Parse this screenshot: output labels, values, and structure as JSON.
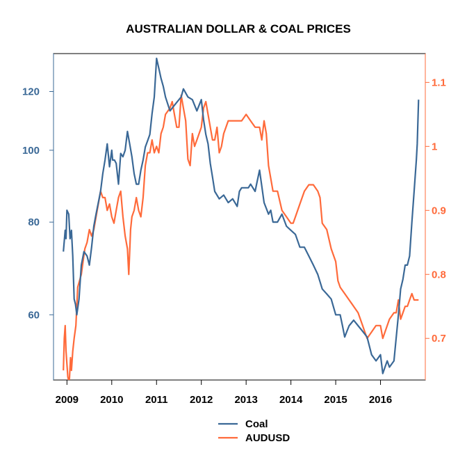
{
  "chart_data": {
    "type": "line",
    "title": "AUSTRALIAN DOLLAR & COAL PRICES",
    "xlabel": "",
    "ylabel_left": "",
    "ylabel_right": "",
    "x_ticks": [
      "2009",
      "2010",
      "2011",
      "2012",
      "2013",
      "2014",
      "2015",
      "2016"
    ],
    "xlim": [
      2008.7,
      2017.0
    ],
    "left_axis": {
      "scale": "log",
      "ticks": [
        60,
        80,
        100,
        120
      ],
      "ylim": [
        49,
        135
      ],
      "color": "#3A6896"
    },
    "right_axis": {
      "scale": "linear",
      "ticks": [
        "0.7",
        "0.8",
        "0.9",
        "1",
        "1.1"
      ],
      "tick_values": [
        0.7,
        0.8,
        0.9,
        1.0,
        1.1
      ],
      "ylim": [
        0.635,
        1.145
      ],
      "color": "#FF6A3A"
    },
    "grid": false,
    "legend_position": "bottom-center",
    "series": [
      {
        "name": "Coal",
        "axis": "left",
        "color": "#3A6896",
        "x": [
          2008.92,
          2008.96,
          2008.98,
          2009.0,
          2009.04,
          2009.07,
          2009.1,
          2009.13,
          2009.16,
          2009.19,
          2009.22,
          2009.27,
          2009.32,
          2009.38,
          2009.45,
          2009.5,
          2009.55,
          2009.6,
          2009.65,
          2009.7,
          2009.75,
          2009.8,
          2009.85,
          2009.9,
          2009.95,
          2010.0,
          2010.02,
          2010.06,
          2010.1,
          2010.15,
          2010.2,
          2010.25,
          2010.3,
          2010.35,
          2010.4,
          2010.45,
          2010.5,
          2010.55,
          2010.6,
          2010.65,
          2010.7,
          2010.75,
          2010.8,
          2010.85,
          2010.9,
          2010.95,
          2011.0,
          2011.05,
          2011.1,
          2011.15,
          2011.2,
          2011.3,
          2011.4,
          2011.5,
          2011.55,
          2011.6,
          2011.7,
          2011.8,
          2011.9,
          2012.0,
          2012.05,
          2012.1,
          2012.15,
          2012.2,
          2012.25,
          2012.3,
          2012.4,
          2012.5,
          2012.6,
          2012.7,
          2012.8,
          2012.85,
          2012.9,
          2013.0,
          2013.05,
          2013.1,
          2013.2,
          2013.25,
          2013.3,
          2013.4,
          2013.5,
          2013.55,
          2013.6,
          2013.7,
          2013.8,
          2013.9,
          2014.0,
          2014.1,
          2014.2,
          2014.3,
          2014.4,
          2014.5,
          2014.6,
          2014.7,
          2014.8,
          2014.9,
          2015.0,
          2015.1,
          2015.15,
          2015.2,
          2015.25,
          2015.3,
          2015.4,
          2015.5,
          2015.6,
          2015.7,
          2015.8,
          2015.9,
          2016.0,
          2016.05,
          2016.1,
          2016.15,
          2016.2,
          2016.3,
          2016.4,
          2016.45,
          2016.5,
          2016.55,
          2016.6,
          2016.65,
          2016.7,
          2016.75,
          2016.8,
          2016.82,
          2016.85
        ],
        "values": [
          73,
          78,
          76,
          83,
          82,
          76,
          78,
          72,
          63,
          62,
          60,
          63,
          70,
          73,
          72,
          70,
          74,
          79,
          82,
          85,
          88,
          93,
          97,
          102,
          95,
          100,
          97,
          97,
          96,
          90,
          99,
          98,
          100,
          106,
          102,
          98,
          93,
          90,
          90,
          94,
          97,
          101,
          103,
          105,
          112,
          118,
          133,
          129,
          125,
          122,
          118,
          113,
          115,
          117,
          118,
          121,
          118,
          117,
          113,
          117,
          110,
          105,
          102,
          96,
          92,
          88,
          86,
          87,
          85,
          86,
          84,
          88,
          89,
          89,
          89,
          90,
          88,
          91,
          94,
          85,
          82,
          83,
          80,
          80,
          82,
          79,
          78,
          77,
          74,
          74,
          72,
          70,
          68,
          65,
          64,
          63,
          60,
          60,
          58,
          56,
          57,
          58,
          59,
          58,
          57,
          56,
          53,
          52,
          53,
          50,
          51,
          52,
          51,
          52,
          60,
          65,
          67,
          70,
          70,
          72,
          80,
          88,
          97,
          102,
          117
        ]
      },
      {
        "name": "AUDUSD",
        "axis": "right",
        "color": "#FF6A3A",
        "x": [
          2008.92,
          2008.94,
          2008.96,
          2008.98,
          2009.0,
          2009.02,
          2009.05,
          2009.08,
          2009.1,
          2009.13,
          2009.16,
          2009.2,
          2009.24,
          2009.28,
          2009.32,
          2009.36,
          2009.4,
          2009.45,
          2009.5,
          2009.55,
          2009.6,
          2009.65,
          2009.7,
          2009.75,
          2009.8,
          2009.85,
          2009.9,
          2009.95,
          2010.0,
          2010.05,
          2010.1,
          2010.15,
          2010.2,
          2010.25,
          2010.3,
          2010.35,
          2010.38,
          2010.42,
          2010.45,
          2010.5,
          2010.55,
          2010.6,
          2010.65,
          2010.7,
          2010.75,
          2010.8,
          2010.85,
          2010.9,
          2010.95,
          2011.0,
          2011.05,
          2011.1,
          2011.15,
          2011.2,
          2011.3,
          2011.35,
          2011.4,
          2011.45,
          2011.5,
          2011.55,
          2011.6,
          2011.65,
          2011.7,
          2011.75,
          2011.8,
          2011.85,
          2011.9,
          2011.95,
          2012.0,
          2012.05,
          2012.1,
          2012.15,
          2012.2,
          2012.25,
          2012.3,
          2012.35,
          2012.4,
          2012.45,
          2012.5,
          2012.55,
          2012.6,
          2012.65,
          2012.7,
          2012.8,
          2012.9,
          2013.0,
          2013.1,
          2013.2,
          2013.3,
          2013.35,
          2013.4,
          2013.45,
          2013.5,
          2013.6,
          2013.7,
          2013.8,
          2013.9,
          2014.0,
          2014.05,
          2014.1,
          2014.2,
          2014.3,
          2014.4,
          2014.5,
          2014.6,
          2014.65,
          2014.7,
          2014.8,
          2014.9,
          2015.0,
          2015.05,
          2015.1,
          2015.2,
          2015.3,
          2015.4,
          2015.5,
          2015.6,
          2015.65,
          2015.7,
          2015.8,
          2015.9,
          2016.0,
          2016.05,
          2016.1,
          2016.2,
          2016.3,
          2016.35,
          2016.4,
          2016.45,
          2016.5,
          2016.55,
          2016.6,
          2016.65,
          2016.7,
          2016.75,
          2016.8,
          2016.85
        ],
        "values": [
          0.65,
          0.7,
          0.72,
          0.68,
          0.66,
          0.64,
          0.63,
          0.67,
          0.65,
          0.68,
          0.7,
          0.72,
          0.78,
          0.79,
          0.8,
          0.82,
          0.84,
          0.85,
          0.87,
          0.86,
          0.87,
          0.89,
          0.91,
          0.93,
          0.92,
          0.92,
          0.9,
          0.91,
          0.89,
          0.88,
          0.9,
          0.92,
          0.93,
          0.89,
          0.86,
          0.84,
          0.8,
          0.87,
          0.89,
          0.9,
          0.92,
          0.9,
          0.89,
          0.92,
          0.97,
          0.99,
          0.99,
          1.01,
          0.99,
          1.0,
          0.99,
          1.02,
          1.03,
          1.05,
          1.06,
          1.07,
          1.05,
          1.03,
          1.03,
          1.08,
          1.06,
          1.04,
          0.98,
          0.97,
          1.02,
          1.0,
          1.01,
          1.02,
          1.03,
          1.06,
          1.07,
          1.05,
          1.03,
          1.01,
          1.01,
          1.03,
          0.99,
          1.0,
          1.02,
          1.03,
          1.04,
          1.04,
          1.04,
          1.04,
          1.04,
          1.05,
          1.04,
          1.03,
          1.03,
          1.01,
          1.04,
          1.02,
          0.97,
          0.93,
          0.93,
          0.9,
          0.89,
          0.88,
          0.88,
          0.89,
          0.91,
          0.93,
          0.94,
          0.94,
          0.93,
          0.92,
          0.88,
          0.87,
          0.84,
          0.82,
          0.79,
          0.78,
          0.77,
          0.76,
          0.75,
          0.74,
          0.72,
          0.71,
          0.7,
          0.71,
          0.72,
          0.72,
          0.7,
          0.71,
          0.73,
          0.74,
          0.74,
          0.76,
          0.73,
          0.74,
          0.75,
          0.75,
          0.76,
          0.77,
          0.76,
          0.76,
          0.76
        ]
      }
    ]
  }
}
